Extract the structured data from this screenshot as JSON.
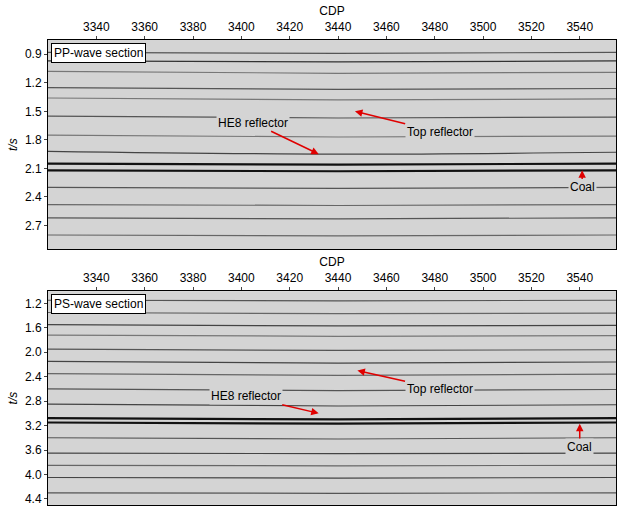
{
  "chart_data": [
    {
      "type": "line",
      "title": "PP-wave section",
      "xlabel": "CDP",
      "ylabel": "t/s",
      "xlim": [
        3320,
        3555
      ],
      "xticks": [
        3340,
        3360,
        3380,
        3400,
        3420,
        3440,
        3460,
        3480,
        3500,
        3520,
        3540
      ],
      "ylim": [
        2.95,
        0.75
      ],
      "yticks": [
        0.9,
        1.2,
        1.5,
        1.8,
        2.1,
        2.4,
        2.7
      ],
      "grid": false,
      "x": [
        3320,
        3440,
        3555
      ],
      "series": [
        {
          "color": "#555555",
          "values": [
            0.88,
            0.89,
            0.88
          ]
        },
        {
          "color": "#333333",
          "values": [
            0.97,
            0.98,
            0.97
          ]
        },
        {
          "color": "#777777",
          "values": [
            1.08,
            1.1,
            1.09
          ]
        },
        {
          "color": "#555555",
          "values": [
            1.25,
            1.27,
            1.26
          ]
        },
        {
          "color": "#777777",
          "values": [
            1.36,
            1.38,
            1.37
          ]
        },
        {
          "color": "#555555",
          "values": [
            1.55,
            1.57,
            1.56
          ]
        },
        {
          "color": "#777777",
          "values": [
            1.75,
            1.77,
            1.76
          ]
        },
        {
          "color": "#444444",
          "values": [
            1.92,
            1.95,
            1.93
          ]
        },
        {
          "color": "#111111",
          "values": [
            2.05,
            2.06,
            2.05
          ]
        },
        {
          "color": "#111111",
          "values": [
            2.12,
            2.13,
            2.12
          ]
        },
        {
          "color": "#555555",
          "values": [
            2.3,
            2.31,
            2.3
          ]
        },
        {
          "color": "#666666",
          "values": [
            2.48,
            2.49,
            2.48
          ]
        },
        {
          "color": "#555555",
          "values": [
            2.62,
            2.63,
            2.62
          ]
        },
        {
          "color": "#666666",
          "values": [
            2.8,
            2.81,
            2.8
          ]
        }
      ],
      "annotations": [
        {
          "text": "HE8 reflector",
          "x": 3432,
          "y": 1.95,
          "text_x": 3405,
          "text_y": 1.62
        },
        {
          "text": "Top reflector",
          "x": 3447,
          "y": 1.5,
          "text_x": 3482,
          "text_y": 1.72
        },
        {
          "text": "Coal",
          "x": 3541,
          "y": 2.12,
          "text_x": 3541,
          "text_y": 2.3
        }
      ]
    },
    {
      "type": "line",
      "title": "PS-wave section",
      "xlabel": "CDP",
      "ylabel": "t/s",
      "xlim": [
        3320,
        3555
      ],
      "xticks": [
        3340,
        3360,
        3380,
        3400,
        3420,
        3440,
        3460,
        3480,
        3500,
        3520,
        3540
      ],
      "ylim": [
        4.5,
        1.0
      ],
      "yticks": [
        1.2,
        1.6,
        {
          "value": 2,
          "label": "2.0"
        },
        2.4,
        2.8,
        3.2,
        3.6,
        {
          "value": 4,
          "label": "4.0"
        },
        4.4
      ],
      "grid": false,
      "x": [
        3320,
        3440,
        3555
      ],
      "series": [
        {
          "color": "#555555",
          "values": [
            1.15,
            1.16,
            1.15
          ]
        },
        {
          "color": "#666666",
          "values": [
            1.35,
            1.37,
            1.36
          ]
        },
        {
          "color": "#444444",
          "values": [
            1.55,
            1.57,
            1.56
          ]
        },
        {
          "color": "#777777",
          "values": [
            1.72,
            1.74,
            1.73
          ]
        },
        {
          "color": "#555555",
          "values": [
            1.95,
            1.97,
            1.96
          ]
        },
        {
          "color": "#444444",
          "values": [
            2.15,
            2.18,
            2.16
          ]
        },
        {
          "color": "#666666",
          "values": [
            2.35,
            2.38,
            2.36
          ]
        },
        {
          "color": "#555555",
          "values": [
            2.6,
            2.63,
            2.61
          ]
        },
        {
          "color": "#444444",
          "values": [
            2.85,
            2.88,
            2.86
          ]
        },
        {
          "color": "#111111",
          "values": [
            3.08,
            3.1,
            3.08
          ]
        },
        {
          "color": "#111111",
          "values": [
            3.15,
            3.17,
            3.15
          ]
        },
        {
          "color": "#555555",
          "values": [
            3.4,
            3.42,
            3.4
          ]
        },
        {
          "color": "#444444",
          "values": [
            3.65,
            3.66,
            3.65
          ]
        },
        {
          "color": "#666666",
          "values": [
            3.85,
            3.86,
            3.85
          ]
        },
        {
          "color": "#444444",
          "values": [
            4.05,
            4.06,
            4.05
          ]
        },
        {
          "color": "#555555",
          "values": [
            4.3,
            4.31,
            4.3
          ]
        }
      ],
      "annotations": [
        {
          "text": "HE8 reflector",
          "x": 3432,
          "y": 3.0,
          "text_x": 3402,
          "text_y": 2.72
        },
        {
          "text": "Top reflector",
          "x": 3448,
          "y": 2.3,
          "text_x": 3482,
          "text_y": 2.6
        },
        {
          "text": "Coal",
          "x": 3540,
          "y": 3.17,
          "text_x": 3540,
          "text_y": 3.55
        }
      ]
    }
  ]
}
